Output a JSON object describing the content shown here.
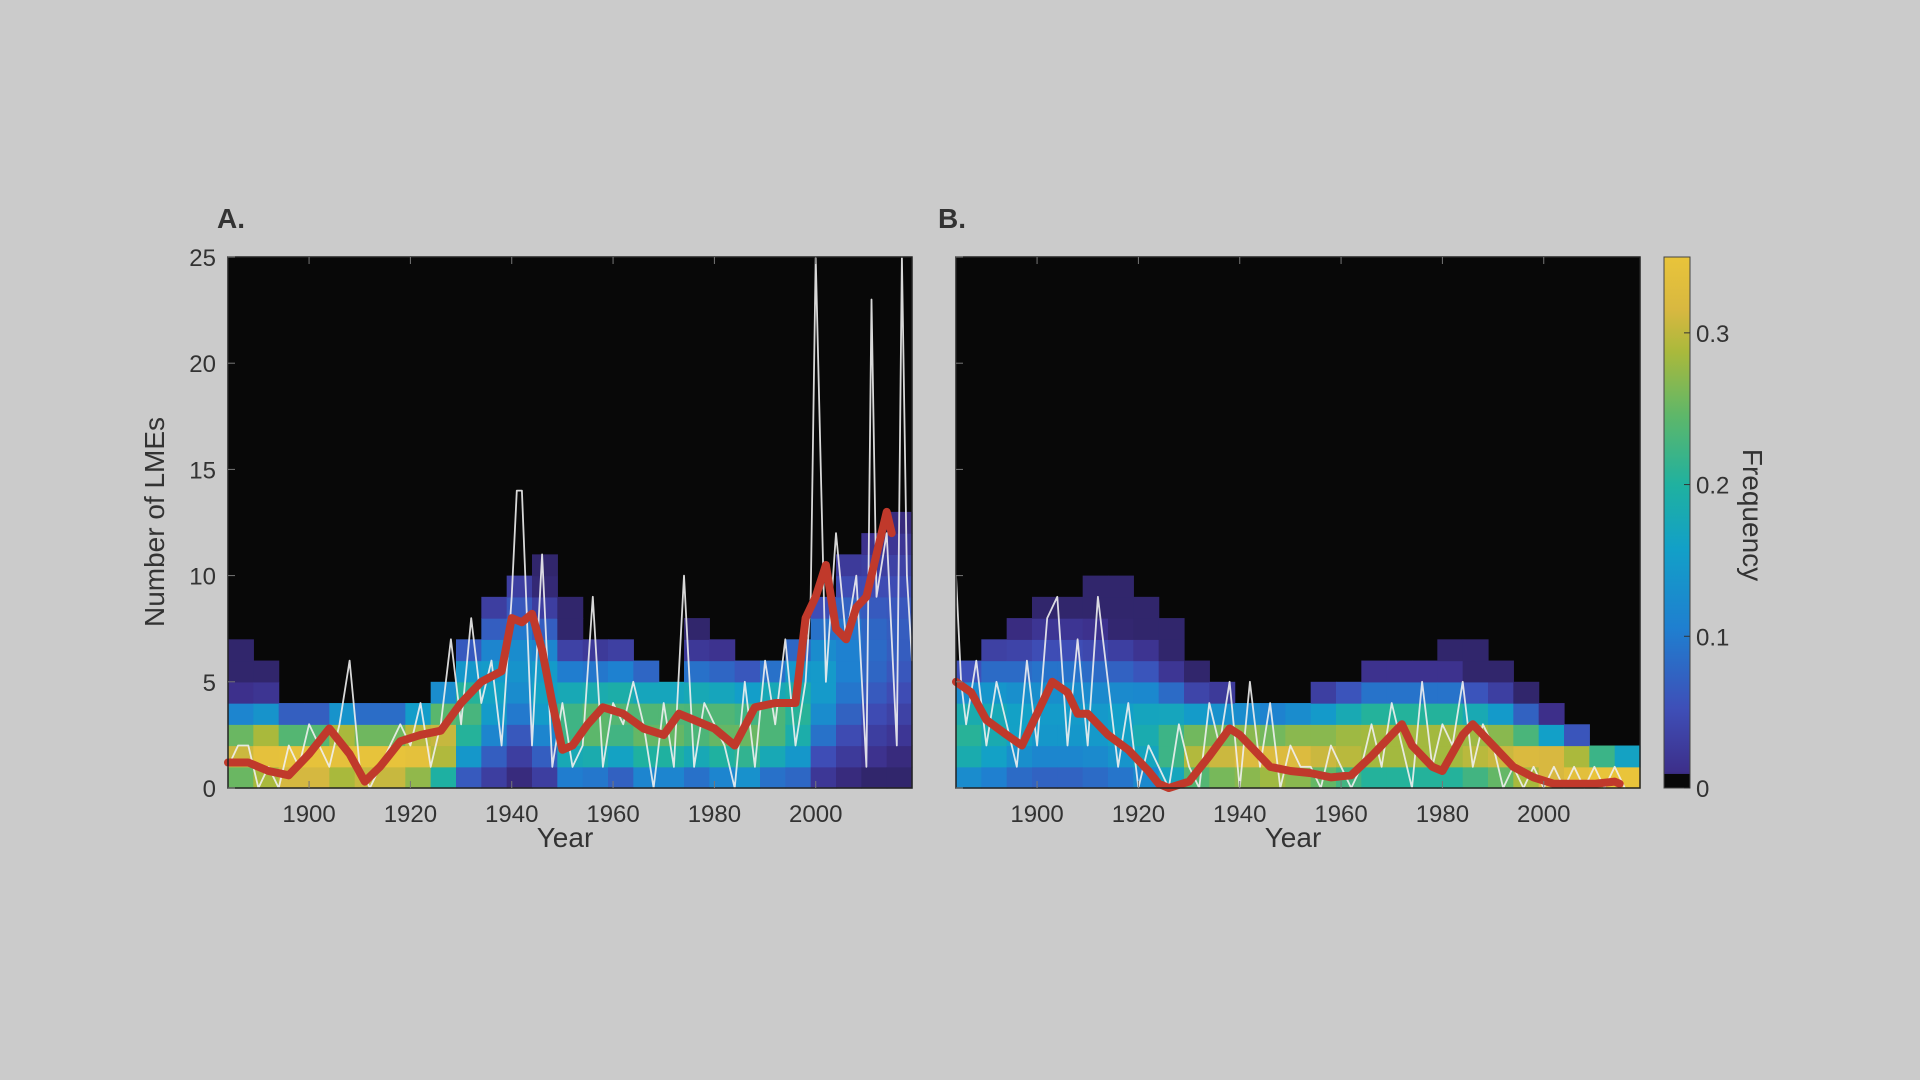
{
  "colors": {
    "background": "#cbcbcb",
    "plot_background": "#080808",
    "red_line": "#c0392b",
    "white_line": "#f0f0f0",
    "colormap": [
      "#080808",
      "#3d2f8a",
      "#3e4fb8",
      "#1f7fd0",
      "#12a0c8",
      "#1fb1a0",
      "#5db76a",
      "#a9b93c",
      "#d8b840",
      "#e9c43a"
    ]
  },
  "colorbar": {
    "label": "Frequency",
    "ticks": [
      "0",
      "0.1",
      "0.2",
      "0.3"
    ],
    "tick_values": [
      0,
      0.1,
      0.2,
      0.3
    ],
    "range": [
      0,
      0.35
    ]
  },
  "chart_data": [
    {
      "type": "heatmap",
      "panel_label": "A.",
      "xlabel": "Year",
      "ylabel": "Number of LMEs",
      "xlim": [
        1884,
        2019
      ],
      "ylim": [
        0,
        25
      ],
      "x_ticks": [
        1900,
        1920,
        1940,
        1960,
        1980,
        2000
      ],
      "y_ticks": [
        0,
        5,
        10,
        15,
        20,
        25
      ],
      "heatmap": {
        "bin_width_years": 5,
        "bin_starts": [
          1884,
          1889,
          1894,
          1899,
          1904,
          1909,
          1914,
          1919,
          1924,
          1929,
          1934,
          1939,
          1944,
          1949,
          1954,
          1959,
          1964,
          1969,
          1974,
          1979,
          1984,
          1989,
          1994,
          1999,
          2004,
          2009,
          2014
        ],
        "upper_extent": [
          7,
          6,
          4,
          4,
          4,
          4,
          4,
          4,
          5,
          7,
          9,
          10,
          11,
          9,
          7,
          7,
          6,
          5,
          8,
          7,
          6,
          6,
          7,
          9,
          11,
          12,
          13
        ],
        "center": [
          1.5,
          1.5,
          1.2,
          1.2,
          1.5,
          1.3,
          1.3,
          1.6,
          2.2,
          3.5,
          4.5,
          5.5,
          4.5,
          3.0,
          3.0,
          3.2,
          2.8,
          2.8,
          3.0,
          2.8,
          2.6,
          3.0,
          3.5,
          5.0,
          6.0,
          6.5,
          7.0
        ],
        "spread": [
          1.5,
          1.5,
          1.4,
          1.4,
          1.5,
          1.4,
          1.4,
          1.5,
          1.8,
          2.2,
          2.8,
          3.0,
          2.8,
          2.2,
          2.0,
          2.0,
          2.0,
          2.0,
          2.0,
          2.0,
          2.0,
          2.0,
          2.5,
          3.0,
          3.5,
          3.8,
          4.0
        ],
        "peak": [
          0.3,
          0.34,
          0.35,
          0.35,
          0.34,
          0.35,
          0.35,
          0.34,
          0.3,
          0.22,
          0.16,
          0.14,
          0.16,
          0.22,
          0.24,
          0.23,
          0.24,
          0.24,
          0.23,
          0.24,
          0.24,
          0.23,
          0.2,
          0.15,
          0.12,
          0.1,
          0.09
        ]
      },
      "series": [
        {
          "role": "annual",
          "x": [
            1884,
            1886,
            1888,
            1890,
            1892,
            1894,
            1896,
            1898,
            1900,
            1902,
            1904,
            1906,
            1908,
            1910,
            1912,
            1914,
            1916,
            1918,
            1920,
            1922,
            1924,
            1926,
            1928,
            1930,
            1932,
            1934,
            1936,
            1938,
            1940,
            1941,
            1942,
            1944,
            1946,
            1948,
            1950,
            1952,
            1954,
            1956,
            1958,
            1960,
            1962,
            1964,
            1966,
            1968,
            1970,
            1972,
            1974,
            1976,
            1978,
            1980,
            1982,
            1984,
            1986,
            1988,
            1990,
            1992,
            1994,
            1996,
            1998,
            1999,
            2000,
            2002,
            2004,
            2006,
            2008,
            2010,
            2011,
            2012,
            2014,
            2016,
            2017,
            2018,
            2019
          ],
          "y": [
            1,
            2,
            2,
            0,
            1,
            0,
            2,
            1,
            3,
            2,
            1,
            3,
            6,
            1,
            0,
            1,
            2,
            3,
            2,
            4,
            1,
            3,
            7,
            3,
            8,
            4,
            6,
            2,
            9,
            14,
            14,
            2,
            11,
            1,
            4,
            1,
            2,
            9,
            1,
            4,
            3,
            5,
            3,
            0,
            4,
            1,
            10,
            1,
            4,
            3,
            2,
            0,
            5,
            1,
            6,
            3,
            7,
            2,
            5,
            9,
            25,
            5,
            12,
            7,
            10,
            1,
            23,
            9,
            12,
            2,
            25,
            10,
            6
          ]
        },
        {
          "role": "smoothed",
          "x": [
            1884,
            1888,
            1892,
            1896,
            1900,
            1904,
            1908,
            1911,
            1914,
            1918,
            1922,
            1926,
            1930,
            1934,
            1938,
            1940,
            1942,
            1944,
            1946,
            1948,
            1950,
            1952,
            1955,
            1958,
            1962,
            1966,
            1970,
            1973,
            1976,
            1980,
            1984,
            1988,
            1992,
            1996,
            1998,
            2000,
            2002,
            2004,
            2006,
            2008,
            2010,
            2012,
            2014,
            2015
          ],
          "y": [
            1.2,
            1.2,
            0.8,
            0.6,
            1.6,
            2.8,
            1.6,
            0.3,
            1.0,
            2.2,
            2.5,
            2.7,
            4.0,
            5.0,
            5.5,
            8.0,
            7.8,
            8.2,
            6.5,
            4.0,
            1.8,
            2.0,
            3.0,
            3.8,
            3.5,
            2.8,
            2.5,
            3.5,
            3.2,
            2.8,
            2.0,
            3.8,
            4.0,
            4.0,
            8.0,
            9.0,
            10.5,
            7.5,
            7.0,
            8.5,
            9.0,
            11.0,
            13.0,
            12.0
          ]
        }
      ]
    },
    {
      "type": "heatmap",
      "panel_label": "B.",
      "xlabel": "Year",
      "ylabel": "",
      "xlim": [
        1884,
        2019
      ],
      "ylim": [
        0,
        25
      ],
      "x_ticks": [
        1900,
        1920,
        1940,
        1960,
        1980,
        2000
      ],
      "y_ticks": [
        0,
        5,
        10,
        15,
        20,
        25
      ],
      "heatmap": {
        "bin_width_years": 5,
        "bin_starts": [
          1884,
          1889,
          1894,
          1899,
          1904,
          1909,
          1914,
          1919,
          1924,
          1929,
          1934,
          1939,
          1944,
          1949,
          1954,
          1959,
          1964,
          1969,
          1974,
          1979,
          1984,
          1989,
          1994,
          1999,
          2004,
          2009,
          2014
        ],
        "upper_extent": [
          6,
          7,
          8,
          9,
          9,
          10,
          10,
          9,
          8,
          6,
          5,
          4,
          4,
          4,
          5,
          5,
          6,
          6,
          6,
          7,
          7,
          6,
          5,
          4,
          3,
          2,
          2
        ],
        "center": [
          2.5,
          2.8,
          3.0,
          3.2,
          3.2,
          3.0,
          2.8,
          2.5,
          2.0,
          1.6,
          1.5,
          1.5,
          1.4,
          1.5,
          1.6,
          1.8,
          2.0,
          2.0,
          2.0,
          2.0,
          1.8,
          1.6,
          1.3,
          1.0,
          0.8,
          0.6,
          0.5
        ],
        "spread": [
          2.2,
          2.5,
          2.6,
          2.8,
          2.8,
          2.8,
          2.6,
          2.4,
          2.0,
          1.7,
          1.6,
          1.5,
          1.5,
          1.5,
          1.6,
          1.7,
          1.8,
          1.8,
          1.8,
          1.8,
          1.7,
          1.6,
          1.4,
          1.2,
          1.0,
          0.9,
          0.8
        ],
        "peak": [
          0.2,
          0.18,
          0.16,
          0.15,
          0.15,
          0.15,
          0.16,
          0.18,
          0.22,
          0.28,
          0.3,
          0.32,
          0.32,
          0.32,
          0.3,
          0.29,
          0.28,
          0.28,
          0.28,
          0.28,
          0.29,
          0.3,
          0.32,
          0.34,
          0.35,
          0.35,
          0.35
        ]
      },
      "series": [
        {
          "role": "annual",
          "x": [
            1884,
            1885,
            1886,
            1888,
            1890,
            1892,
            1894,
            1896,
            1898,
            1900,
            1902,
            1904,
            1906,
            1908,
            1910,
            1912,
            1914,
            1916,
            1918,
            1920,
            1922,
            1924,
            1926,
            1928,
            1930,
            1932,
            1934,
            1936,
            1938,
            1940,
            1942,
            1944,
            1946,
            1948,
            1950,
            1952,
            1954,
            1956,
            1958,
            1960,
            1962,
            1964,
            1966,
            1968,
            1970,
            1972,
            1974,
            1976,
            1978,
            1980,
            1982,
            1984,
            1986,
            1988,
            1990,
            1992,
            1994,
            1996,
            1998,
            2000,
            2002,
            2004,
            2006,
            2008,
            2010,
            2012,
            2014,
            2016
          ],
          "y": [
            10,
            5,
            3,
            6,
            2,
            5,
            3,
            1,
            6,
            2,
            8,
            9,
            2,
            7,
            2,
            9,
            5,
            1,
            4,
            0,
            2,
            1,
            0,
            3,
            1,
            0,
            4,
            2,
            5,
            0,
            5,
            1,
            4,
            0,
            2,
            1,
            1,
            0,
            2,
            1,
            0,
            1,
            3,
            1,
            4,
            2,
            0,
            5,
            1,
            3,
            2,
            5,
            1,
            3,
            2,
            0,
            1,
            0,
            1,
            0,
            1,
            0,
            1,
            0,
            1,
            0,
            1,
            0
          ]
        },
        {
          "role": "smoothed",
          "x": [
            1884,
            1887,
            1890,
            1894,
            1897,
            1900,
            1903,
            1906,
            1908,
            1910,
            1914,
            1918,
            1922,
            1924,
            1926,
            1930,
            1934,
            1938,
            1940,
            1942,
            1946,
            1950,
            1954,
            1958,
            1962,
            1966,
            1970,
            1972,
            1974,
            1978,
            1980,
            1984,
            1986,
            1990,
            1994,
            1998,
            2002,
            2006,
            2010,
            2014,
            2015
          ],
          "y": [
            5.0,
            4.5,
            3.2,
            2.5,
            2.0,
            3.5,
            5.0,
            4.5,
            3.5,
            3.5,
            2.5,
            1.8,
            0.8,
            0.2,
            0.0,
            0.3,
            1.5,
            2.8,
            2.5,
            2.0,
            1.0,
            0.8,
            0.7,
            0.5,
            0.6,
            1.5,
            2.5,
            3.0,
            2.0,
            1.0,
            0.8,
            2.5,
            3.0,
            2.0,
            1.0,
            0.5,
            0.2,
            0.2,
            0.2,
            0.3,
            0.2
          ]
        }
      ]
    }
  ]
}
